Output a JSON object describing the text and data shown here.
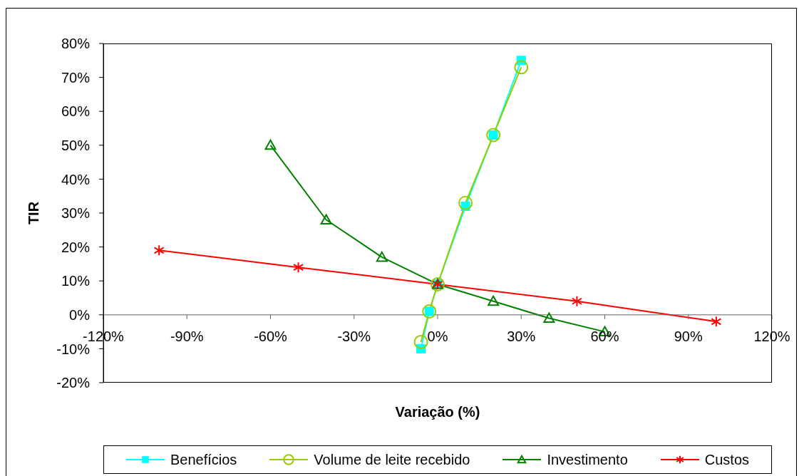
{
  "chart_data": {
    "type": "line",
    "xlabel": "Variação (%)",
    "ylabel": "TIR",
    "legend": "bottom",
    "xlim": [
      -120,
      120
    ],
    "xticks": [
      {
        "value": -120,
        "label": "-120%"
      },
      {
        "value": -90,
        "label": "-90%"
      },
      {
        "value": -60,
        "label": "-60%"
      },
      {
        "value": -30,
        "label": "-30%"
      },
      {
        "value": 0,
        "label": "0%"
      },
      {
        "value": 30,
        "label": "30%"
      },
      {
        "value": 60,
        "label": "60%"
      },
      {
        "value": 90,
        "label": "90%"
      },
      {
        "value": 120,
        "label": "120%"
      }
    ],
    "ylim": [
      -20,
      80
    ],
    "yticks": [
      {
        "value": -20,
        "label": "-20%"
      },
      {
        "value": -10,
        "label": "-10%"
      },
      {
        "value": 0,
        "label": "0%"
      },
      {
        "value": 10,
        "label": "10%"
      },
      {
        "value": 20,
        "label": "20%"
      },
      {
        "value": 30,
        "label": "30%"
      },
      {
        "value": 40,
        "label": "40%"
      },
      {
        "value": 50,
        "label": "50%"
      },
      {
        "value": 60,
        "label": "60%"
      },
      {
        "value": 70,
        "label": "70%"
      },
      {
        "value": 80,
        "label": "80%"
      }
    ],
    "series": [
      {
        "name": "Benefícios",
        "color": "#00ffff",
        "marker": "square",
        "x": [
          -6,
          -3,
          0,
          10,
          20,
          30
        ],
        "values": [
          -10,
          1,
          9,
          32,
          53,
          75
        ]
      },
      {
        "name": "Volume de leite recebido",
        "color": "#99cc00",
        "marker": "circle",
        "x": [
          -6,
          -3,
          0,
          10,
          20,
          30
        ],
        "values": [
          -8,
          1,
          9,
          33,
          53,
          73
        ]
      },
      {
        "name": "Investimento",
        "color": "#008000",
        "marker": "triangle",
        "x": [
          -60,
          -40,
          -20,
          0,
          20,
          40,
          60
        ],
        "values": [
          50,
          28,
          17,
          9,
          4,
          -1,
          -5
        ]
      },
      {
        "name": "Custos",
        "color": "#ff0000",
        "marker": "cross",
        "x": [
          -100,
          -50,
          0,
          50,
          100
        ],
        "values": [
          19,
          14,
          9,
          4,
          -2
        ]
      }
    ]
  }
}
